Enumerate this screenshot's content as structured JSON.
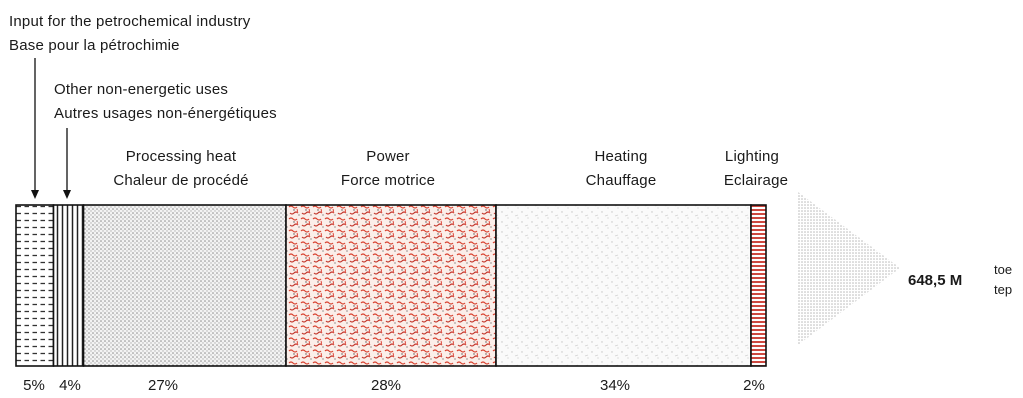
{
  "chart_data": {
    "type": "bar",
    "orientation": "horizontal-stacked",
    "categories": [
      "Input for the petrochemical industry / Base pour la pétrochimie",
      "Other non-energetic uses / Autres usages non-énergétiques",
      "Processing heat / Chaleur de procédé",
      "Power / Force motrice",
      "Heating / Chauffage",
      "Lighting / Eclairage"
    ],
    "values": [
      5,
      4,
      27,
      28,
      34,
      2
    ],
    "value_labels": [
      "5%",
      "4%",
      "27%",
      "28%",
      "34%",
      "2%"
    ],
    "labels_en": [
      "Input for the petrochemical industry",
      "Other non-energetic uses",
      "Processing heat",
      "Power",
      "Heating",
      "Lighting"
    ],
    "labels_fr": [
      "Base pour la pétrochimie",
      "Autres usages non-énergétiques",
      "Chaleur de procédé",
      "Force motrice",
      "Chauffage",
      "Eclairage"
    ],
    "total": "648,5 M",
    "total_units": [
      "toe",
      "tep"
    ],
    "grid": false,
    "legend": "none",
    "colors": [
      "#333333",
      "#222222",
      "#9a9a9a",
      "#d8412f",
      "#cfcfcf",
      "#c8342a"
    ]
  }
}
